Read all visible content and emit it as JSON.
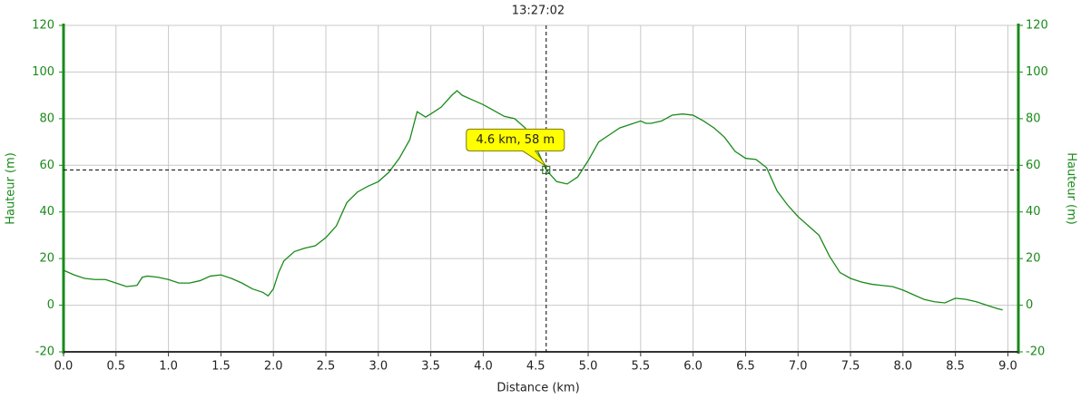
{
  "chart_data": {
    "type": "line",
    "title": "13:27:02",
    "x_label": "Distance (km)",
    "y_label": "Hauteur (m)",
    "y2_label": "Hauteur (m)",
    "x": [
      0.0,
      0.1,
      0.2,
      0.3,
      0.4,
      0.5,
      0.6,
      0.7,
      0.75,
      0.8,
      0.9,
      1.0,
      1.1,
      1.2,
      1.3,
      1.4,
      1.5,
      1.6,
      1.7,
      1.8,
      1.9,
      1.95,
      2.0,
      2.05,
      2.1,
      2.2,
      2.3,
      2.4,
      2.5,
      2.6,
      2.7,
      2.8,
      2.9,
      3.0,
      3.1,
      3.2,
      3.3,
      3.37,
      3.45,
      3.5,
      3.6,
      3.7,
      3.75,
      3.8,
      3.9,
      4.0,
      4.1,
      4.2,
      4.3,
      4.4,
      4.5,
      4.6,
      4.7,
      4.8,
      4.9,
      5.0,
      5.1,
      5.2,
      5.3,
      5.4,
      5.5,
      5.55,
      5.6,
      5.7,
      5.8,
      5.9,
      6.0,
      6.1,
      6.2,
      6.3,
      6.4,
      6.5,
      6.6,
      6.7,
      6.8,
      6.9,
      7.0,
      7.1,
      7.2,
      7.3,
      7.4,
      7.5,
      7.6,
      7.7,
      7.8,
      7.9,
      8.0,
      8.1,
      8.2,
      8.3,
      8.4,
      8.5,
      8.6,
      8.7,
      8.8,
      8.9,
      8.95
    ],
    "series": [
      {
        "name": "Hauteur",
        "color": "#1a8a1a",
        "values": [
          15,
          13,
          11.5,
          11,
          11,
          9.5,
          8,
          8.5,
          12,
          12.5,
          12,
          11,
          9.5,
          9.5,
          10.5,
          12.5,
          13,
          11.5,
          9.5,
          7,
          5.5,
          4,
          7,
          14,
          19,
          23,
          24.5,
          25.5,
          29,
          34,
          44,
          48.5,
          51,
          53,
          57,
          63,
          71,
          83,
          80.7,
          82,
          85,
          90,
          92,
          90,
          88,
          86,
          83.5,
          81,
          80,
          76,
          68,
          58,
          53,
          52,
          55,
          62,
          70,
          73,
          76,
          77.5,
          79,
          78,
          78,
          79,
          81.5,
          82,
          81.5,
          79,
          76,
          72,
          66,
          63,
          62.5,
          59,
          49,
          43,
          38,
          34,
          30,
          21,
          14,
          11.5,
          10,
          9,
          8.5,
          8,
          6.5,
          4.5,
          2.5,
          1.5,
          1,
          3,
          2.5,
          1.5,
          0,
          -1.5,
          -2
        ]
      }
    ],
    "xlim": [
      0,
      9.1
    ],
    "ylim": [
      -20,
      120
    ],
    "xticks": [
      {
        "value": 0,
        "label": "0.0"
      },
      {
        "value": 0.5,
        "label": "0.5"
      },
      {
        "value": 1,
        "label": "1.0"
      },
      {
        "value": 1.5,
        "label": "1.5"
      },
      {
        "value": 2,
        "label": "2.0"
      },
      {
        "value": 2.5,
        "label": "2.5"
      },
      {
        "value": 3,
        "label": "3.0"
      },
      {
        "value": 3.5,
        "label": "3.5"
      },
      {
        "value": 4,
        "label": "4.0"
      },
      {
        "value": 4.5,
        "label": "4.5"
      },
      {
        "value": 5,
        "label": "5.0"
      },
      {
        "value": 5.5,
        "label": "5.5"
      },
      {
        "value": 6,
        "label": "6.0"
      },
      {
        "value": 6.5,
        "label": "6.5"
      },
      {
        "value": 7,
        "label": "7.0"
      },
      {
        "value": 7.5,
        "label": "7.5"
      },
      {
        "value": 8,
        "label": "8.0"
      },
      {
        "value": 8.5,
        "label": "8.5"
      },
      {
        "value": 9,
        "label": "9.0"
      }
    ],
    "yticks": [
      120,
      100,
      80,
      60,
      40,
      20,
      0,
      -20
    ],
    "grid": true,
    "cursor": {
      "x": 4.6,
      "y": 58,
      "label": "4.6 km, 58 m"
    }
  }
}
